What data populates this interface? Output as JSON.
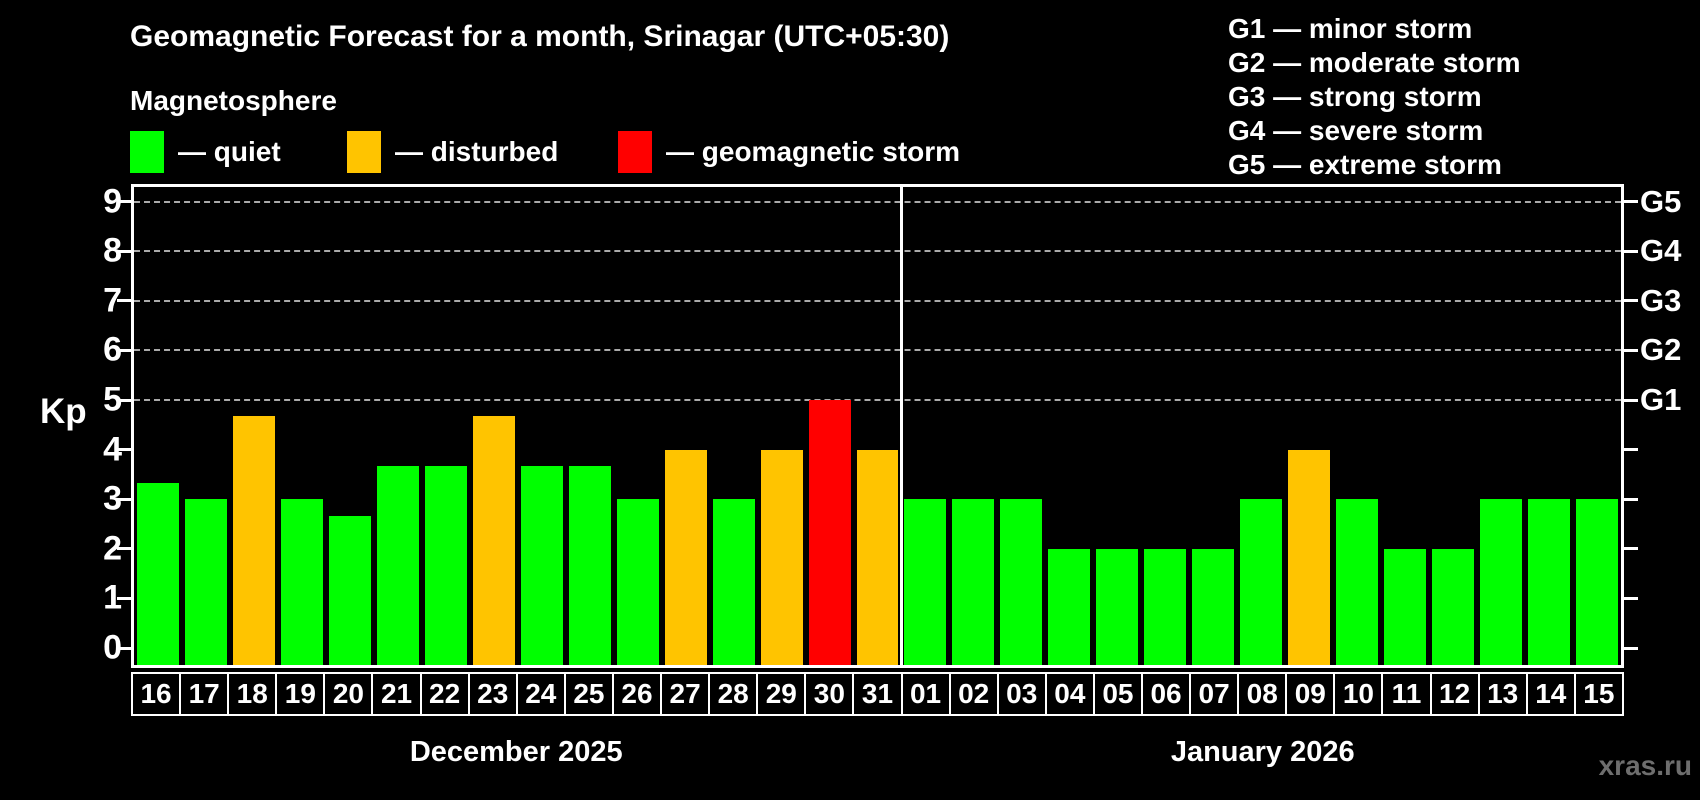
{
  "chart_data": {
    "type": "bar",
    "title": "Geomagnetic Forecast for a month, Srinagar (UTC+05:30)",
    "subtitle": "Magnetosphere",
    "ylabel": "Kp",
    "ylim": [
      0,
      9
    ],
    "yticks": [
      0,
      1,
      2,
      3,
      4,
      5,
      6,
      7,
      8,
      9
    ],
    "dashed_gridlines_kp": [
      5,
      6,
      7,
      8,
      9
    ],
    "legend": [
      {
        "label": "— quiet",
        "status": "quiet",
        "color": "#00ff00"
      },
      {
        "label": "— disturbed",
        "status": "disturbed",
        "color": "#ffc400"
      },
      {
        "label": "— geomagnetic storm",
        "status": "storm",
        "color": "#ff0000"
      }
    ],
    "storm_scale": [
      "G1 — minor storm",
      "G2 — moderate storm",
      "G3 — strong storm",
      "G4 — severe storm",
      "G5 — extreme storm"
    ],
    "right_axis": [
      {
        "label": "G1",
        "kp": 5
      },
      {
        "label": "G2",
        "kp": 6
      },
      {
        "label": "G3",
        "kp": 7
      },
      {
        "label": "G4",
        "kp": 8
      },
      {
        "label": "G5",
        "kp": 9
      }
    ],
    "colors": {
      "quiet": "#00ff00",
      "disturbed": "#ffc400",
      "storm": "#ff0000",
      "grid": "#aaaaaa",
      "axis": "#ffffff"
    },
    "months": [
      {
        "label": "December 2025",
        "days": 16
      },
      {
        "label": "January 2026",
        "days": 15
      }
    ],
    "days": [
      {
        "day": "16",
        "value": 3.33,
        "status": "quiet"
      },
      {
        "day": "17",
        "value": 3,
        "status": "quiet"
      },
      {
        "day": "18",
        "value": 4.67,
        "status": "disturbed"
      },
      {
        "day": "19",
        "value": 3,
        "status": "quiet"
      },
      {
        "day": "20",
        "value": 2.67,
        "status": "quiet"
      },
      {
        "day": "21",
        "value": 3.67,
        "status": "quiet"
      },
      {
        "day": "22",
        "value": 3.67,
        "status": "quiet"
      },
      {
        "day": "23",
        "value": 4.67,
        "status": "disturbed"
      },
      {
        "day": "24",
        "value": 3.67,
        "status": "quiet"
      },
      {
        "day": "25",
        "value": 3.67,
        "status": "quiet"
      },
      {
        "day": "26",
        "value": 3,
        "status": "quiet"
      },
      {
        "day": "27",
        "value": 4,
        "status": "disturbed"
      },
      {
        "day": "28",
        "value": 3,
        "status": "quiet"
      },
      {
        "day": "29",
        "value": 4,
        "status": "disturbed"
      },
      {
        "day": "30",
        "value": 5,
        "status": "storm"
      },
      {
        "day": "31",
        "value": 4,
        "status": "disturbed"
      },
      {
        "day": "01",
        "value": 3,
        "status": "quiet"
      },
      {
        "day": "02",
        "value": 3,
        "status": "quiet"
      },
      {
        "day": "03",
        "value": 3,
        "status": "quiet"
      },
      {
        "day": "04",
        "value": 2,
        "status": "quiet"
      },
      {
        "day": "05",
        "value": 2,
        "status": "quiet"
      },
      {
        "day": "06",
        "value": 2,
        "status": "quiet"
      },
      {
        "day": "07",
        "value": 2,
        "status": "quiet"
      },
      {
        "day": "08",
        "value": 3,
        "status": "quiet"
      },
      {
        "day": "09",
        "value": 4,
        "status": "disturbed"
      },
      {
        "day": "10",
        "value": 3,
        "status": "quiet"
      },
      {
        "day": "11",
        "value": 2,
        "status": "quiet"
      },
      {
        "day": "12",
        "value": 2,
        "status": "quiet"
      },
      {
        "day": "13",
        "value": 3,
        "status": "quiet"
      },
      {
        "day": "14",
        "value": 3,
        "status": "quiet"
      },
      {
        "day": "15",
        "value": 3,
        "status": "quiet"
      }
    ],
    "watermark": "xras.ru"
  }
}
